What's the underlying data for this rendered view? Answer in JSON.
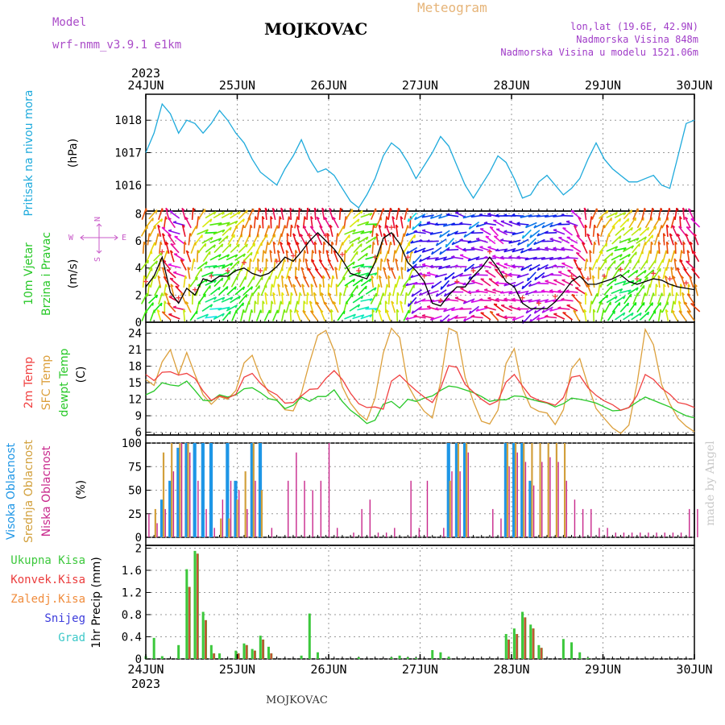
{
  "header": {
    "model_label": "Model",
    "model_name": "wrf-nmm_v3.9.1  e1km",
    "station": "MOJKOVAC",
    "product": "Meteogram",
    "lonlat": "lon,lat (19.6E, 42.9N)",
    "altitude": "Nadmorska Visina 848m",
    "model_altitude": "Nadmorska Visina u modelu 1521.06m",
    "footer": "MOJKOVAC",
    "credit": "made by Angel"
  },
  "colors": {
    "pressure": "#1eaadc",
    "t2m": "#f04040",
    "tsfc": "#dca03c",
    "dewpoint": "#28c828",
    "high_cloud": "#1e96e6",
    "mid_cloud": "#d2a03c",
    "low_cloud": "#c8288c",
    "total_precip": "#3cc83c",
    "conv_precip": "#eb3c3c",
    "frz_precip": "#f08c3c",
    "snow": "#3c3cdc",
    "graupel": "#3cc8c8",
    "model": "#aa4bc8",
    "product": "#e6b478",
    "location_text": "#a03cc8",
    "wind_label": "#28c828",
    "compass": "#c85ac8"
  },
  "chart_data": [
    {
      "type": "line",
      "panel": "pressure",
      "ylabel": [
        "Pritisak na nivou mora",
        "(hPa)"
      ],
      "ylim": [
        1015.2,
        1018.8
      ],
      "yticks": [
        1016,
        1017,
        1018
      ],
      "x_start": "2023-06-24T00",
      "x_step_hours": 3,
      "x_ticks": [
        "24JUN",
        "25JUN",
        "26JUN",
        "27JUN",
        "28JUN",
        "29JUN",
        "30JUN"
      ],
      "year": "2023",
      "grid": true,
      "series": [
        {
          "key": "pressure",
          "values": [
            1017.0,
            1017.6,
            1018.5,
            1018.2,
            1017.6,
            1018.0,
            1017.9,
            1017.6,
            1017.9,
            1018.3,
            1018.0,
            1017.6,
            1017.3,
            1016.8,
            1016.4,
            1016.2,
            1016.0,
            1016.5,
            1016.9,
            1017.4,
            1016.8,
            1016.4,
            1016.5,
            1016.3,
            1015.9,
            1015.5,
            1015.3,
            1015.7,
            1016.2,
            1016.9,
            1017.3,
            1017.1,
            1016.7,
            1016.2,
            1016.6,
            1017.0,
            1017.5,
            1017.2,
            1016.6,
            1016.0,
            1015.6,
            1016.0,
            1016.4,
            1016.9,
            1016.7,
            1016.2,
            1015.6,
            1015.7,
            1016.1,
            1016.3,
            1016.0,
            1015.7,
            1015.9,
            1016.2,
            1016.8,
            1017.3,
            1016.8,
            1016.5,
            1016.3,
            1016.1,
            1016.1,
            1016.2,
            1016.3,
            1016.0,
            1015.9,
            1016.9,
            1017.9,
            1018.0
          ]
        }
      ]
    },
    {
      "type": "line",
      "panel": "wind",
      "ylabel": [
        "10m Vjetar",
        "Brzina i Pravac",
        "(m/s)"
      ],
      "compass": {
        "n": "N",
        "s": "S",
        "w": "W",
        "e": "E"
      },
      "ylim": [
        0,
        8.2
      ],
      "yticks": [
        0,
        2,
        4,
        6,
        8
      ],
      "x_start": "2023-06-24T00",
      "x_step_hours": 3,
      "grid": true,
      "series": [
        {
          "key": "speed",
          "values": [
            2.6,
            3.4,
            4.8,
            2.2,
            1.4,
            2.5,
            2.0,
            3.2,
            3.0,
            3.4,
            3.4,
            3.8,
            4.0,
            3.6,
            3.4,
            3.6,
            4.1,
            4.8,
            4.5,
            5.2,
            6.0,
            6.6,
            6.0,
            5.4,
            4.6,
            3.6,
            3.4,
            3.2,
            4.4,
            6.2,
            6.6,
            5.8,
            4.4,
            3.8,
            3.0,
            1.4,
            1.2,
            2.0,
            2.6,
            2.6,
            3.4,
            4.0,
            4.8,
            4.0,
            3.0,
            2.6,
            1.4,
            1.0,
            1.0,
            1.0,
            1.5,
            2.2,
            3.0,
            3.4,
            2.8,
            2.8,
            3.0,
            3.2,
            3.5,
            3.0,
            2.8,
            3.0,
            3.2,
            3.1,
            2.8,
            2.6,
            2.5,
            2.4
          ]
        },
        {
          "key": "direction",
          "values": [
            200,
            210,
            180,
            150,
            120,
            170,
            200,
            230,
            250,
            240,
            230,
            220,
            210,
            200,
            195,
            190,
            185,
            180,
            175,
            170,
            165,
            160,
            165,
            170,
            200,
            230,
            240,
            250,
            190,
            180,
            175,
            185,
            200,
            60,
            80,
            90,
            70,
            60,
            80,
            100,
            70,
            90,
            110,
            120,
            100,
            90,
            80,
            60,
            70,
            80,
            90,
            100,
            110,
            140,
            170,
            190,
            210,
            230,
            240,
            230,
            220,
            210,
            200,
            190,
            180,
            170,
            160,
            150
          ]
        }
      ]
    },
    {
      "type": "line",
      "panel": "temperature",
      "ylabel": [
        "2m Temp",
        "SFC Temp",
        "dewpt Temp",
        "(C)"
      ],
      "ylim": [
        5.5,
        26
      ],
      "yticks": [
        6,
        9,
        12,
        15,
        18,
        21,
        24
      ],
      "x_start": "2023-06-24T00",
      "x_step_hours": 3,
      "grid": true,
      "series": [
        {
          "key": "t2m",
          "values": [
            16.5,
            15.4,
            16.9,
            17.0,
            16.4,
            16.7,
            15.8,
            13.5,
            11.8,
            12.6,
            12.2,
            12.9,
            16.0,
            16.7,
            14.9,
            13.6,
            12.8,
            11.3,
            11.4,
            12.6,
            13.8,
            13.9,
            15.8,
            17.2,
            15.6,
            13.1,
            11.2,
            10.5,
            10.6,
            10.2,
            15.3,
            16.4,
            14.9,
            13.6,
            12.4,
            11.4,
            14.0,
            18.1,
            17.8,
            14.7,
            13.3,
            12.0,
            11.0,
            11.7,
            15.1,
            16.5,
            14.4,
            12.5,
            11.8,
            11.4,
            10.9,
            12.3,
            16.0,
            16.3,
            14.1,
            12.7,
            11.7,
            11.0,
            10.0,
            10.5,
            12.7,
            16.5,
            15.6,
            14.0,
            12.9,
            11.4,
            11.1,
            10.5
          ]
        },
        {
          "key": "tsfc",
          "values": [
            15.6,
            14.5,
            18.8,
            21.0,
            16.5,
            20.5,
            16.5,
            12.8,
            11.1,
            12.5,
            12.0,
            13.6,
            18.6,
            20.0,
            15.9,
            13.2,
            11.9,
            10.1,
            9.9,
            13.1,
            18.7,
            23.6,
            24.5,
            20.8,
            14.3,
            11.3,
            9.4,
            8.2,
            12.2,
            20.4,
            24.9,
            23.2,
            14.6,
            11.9,
            9.8,
            8.6,
            15.1,
            24.9,
            24.2,
            16.0,
            11.6,
            8.0,
            7.5,
            10.0,
            18.5,
            21.2,
            13.9,
            10.6,
            9.8,
            9.5,
            7.4,
            10.1,
            17.5,
            19.4,
            14.5,
            10.3,
            8.5,
            6.8,
            5.8,
            7.3,
            14.9,
            24.7,
            21.9,
            14.7,
            11.2,
            8.5,
            7.1,
            6.1
          ]
        },
        {
          "key": "dewpoint",
          "values": [
            12.8,
            13.5,
            15.0,
            14.6,
            14.4,
            15.3,
            13.6,
            11.8,
            11.7,
            12.8,
            12.4,
            12.8,
            13.9,
            14.1,
            13.2,
            12.1,
            11.8,
            10.3,
            10.9,
            12.4,
            11.6,
            12.5,
            12.5,
            13.7,
            11.6,
            10.0,
            8.9,
            7.6,
            8.2,
            11.1,
            11.6,
            10.4,
            12.0,
            11.6,
            12.2,
            12.6,
            13.6,
            14.4,
            14.2,
            13.7,
            13.2,
            12.5,
            11.6,
            11.9,
            11.9,
            12.6,
            12.5,
            12.0,
            11.6,
            11.3,
            10.6,
            11.2,
            12.2,
            12.0,
            11.7,
            11.3,
            10.6,
            9.9,
            10.0,
            10.5,
            11.5,
            12.4,
            11.8,
            11.2,
            10.6,
            9.7,
            9.0,
            8.6
          ]
        }
      ]
    },
    {
      "type": "bar",
      "panel": "cloud",
      "ylabel": [
        "Visoka Oblacnost",
        "Srednja Oblacnost",
        "Niska Oblacnost",
        "(%)"
      ],
      "ylim": [
        0,
        100
      ],
      "yticks": [
        0,
        25,
        50,
        75,
        100
      ],
      "x_start": "2023-06-24T00",
      "x_step_hours": 3,
      "grid": true,
      "series": [
        {
          "key": "high",
          "values": [
            0,
            0,
            40,
            60,
            95,
            100,
            100,
            100,
            100,
            0,
            100,
            60,
            0,
            100,
            100,
            0,
            0,
            0,
            0,
            0,
            0,
            0,
            0,
            0,
            0,
            0,
            0,
            0,
            0,
            0,
            0,
            0,
            0,
            0,
            0,
            0,
            0,
            100,
            100,
            100,
            0,
            0,
            0,
            0,
            100,
            100,
            100,
            60,
            0,
            0,
            0,
            0,
            0,
            0,
            0,
            0,
            0,
            0,
            0,
            0,
            0,
            0,
            0,
            0,
            0,
            0,
            0,
            0
          ]
        },
        {
          "key": "mid",
          "values": [
            0,
            30,
            90,
            100,
            100,
            100,
            0,
            0,
            0,
            20,
            20,
            40,
            70,
            100,
            50,
            0,
            0,
            0,
            0,
            0,
            0,
            0,
            0,
            0,
            0,
            0,
            0,
            0,
            0,
            0,
            0,
            0,
            0,
            0,
            0,
            0,
            0,
            60,
            100,
            100,
            0,
            0,
            0,
            0,
            100,
            100,
            100,
            100,
            100,
            100,
            100,
            100,
            0,
            0,
            0,
            0,
            0,
            0,
            0,
            0,
            0,
            0,
            0,
            0,
            0,
            0,
            0,
            0
          ]
        },
        {
          "key": "low",
          "values": [
            25,
            15,
            30,
            70,
            100,
            90,
            60,
            30,
            10,
            40,
            60,
            50,
            30,
            60,
            0,
            10,
            0,
            60,
            90,
            60,
            50,
            60,
            100,
            10,
            0,
            5,
            30,
            40,
            5,
            5,
            10,
            0,
            60,
            10,
            60,
            0,
            10,
            70,
            70,
            90,
            0,
            0,
            30,
            20,
            75,
            90,
            80,
            55,
            80,
            85,
            80,
            60,
            40,
            30,
            30,
            10,
            10,
            5,
            5,
            5,
            5,
            5,
            5,
            5,
            5,
            5,
            30,
            30
          ]
        }
      ]
    },
    {
      "type": "bar",
      "panel": "precip",
      "ylabel": [
        "1hr Precip (mm)"
      ],
      "legend": [
        "Ukupna Kisa",
        "Konvek.Kisa",
        "Zaledj.Kisa",
        "Snijeg",
        "Grad"
      ],
      "ylim": [
        0,
        2.05
      ],
      "yticks": [
        0,
        0.4,
        0.8,
        1.2,
        1.6,
        2
      ],
      "x_start": "2023-06-24T00",
      "x_step_hours": 3,
      "x_ticks": [
        "24JUN",
        "25JUN",
        "26JUN",
        "27JUN",
        "28JUN",
        "29JUN",
        "30JUN"
      ],
      "year": "2023",
      "grid": true,
      "series": [
        {
          "key": "total",
          "values": [
            0.05,
            0.38,
            0.05,
            0.0,
            0.25,
            1.62,
            1.95,
            0.85,
            0.25,
            0.1,
            0.0,
            0.15,
            0.28,
            0.18,
            0.42,
            0.22,
            0.0,
            0.0,
            0.0,
            0.06,
            0.82,
            0.12,
            0.0,
            0.0,
            0.0,
            0.0,
            0.03,
            0.0,
            0.0,
            0.0,
            0.03,
            0.06,
            0.03,
            0.02,
            0.0,
            0.16,
            0.12,
            0.04,
            0.0,
            0.0,
            0.0,
            0.0,
            0.0,
            0.0,
            0.45,
            0.55,
            0.85,
            0.62,
            0.25,
            0.0,
            0.0,
            0.36,
            0.3,
            0.12,
            0.02,
            0.0,
            0.0,
            0.0,
            0.0,
            0.0,
            0.0,
            0.0,
            0.0,
            0.0,
            0.0,
            0.0,
            0.0,
            0.0
          ]
        },
        {
          "key": "convective",
          "values": [
            0.0,
            0.0,
            0.0,
            0.0,
            0.0,
            1.3,
            1.9,
            0.7,
            0.1,
            0.0,
            0.0,
            0.1,
            0.25,
            0.15,
            0.35,
            0.1,
            0.0,
            0.0,
            0.0,
            0.0,
            0.0,
            0.0,
            0.0,
            0.0,
            0.0,
            0.0,
            0.0,
            0.0,
            0.0,
            0.0,
            0.0,
            0.0,
            0.0,
            0.0,
            0.0,
            0.0,
            0.0,
            0.0,
            0.0,
            0.0,
            0.0,
            0.0,
            0.0,
            0.0,
            0.35,
            0.45,
            0.75,
            0.55,
            0.2,
            0.0,
            0.0,
            0.0,
            0.0,
            0.0,
            0.0,
            0.0,
            0.0,
            0.0,
            0.0,
            0.0,
            0.0,
            0.0,
            0.0,
            0.0,
            0.0,
            0.0,
            0.0,
            0.0
          ]
        }
      ]
    }
  ]
}
